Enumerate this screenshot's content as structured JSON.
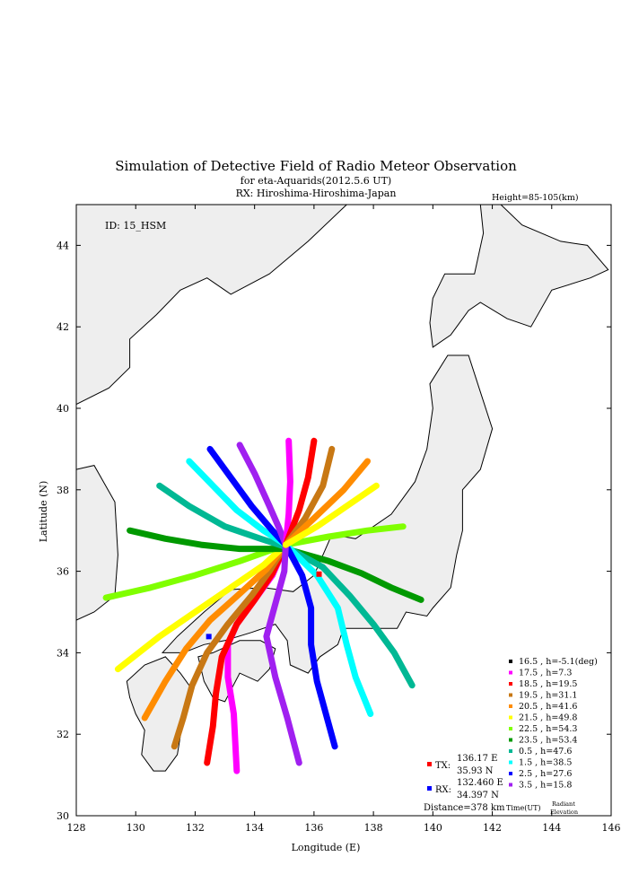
{
  "chart_data": {
    "type": "scatter",
    "title": "Simulation of Detective Field of Radio Meteor Observation",
    "subtitle_1": "for eta-Aquarids(2012.5.6 UT)",
    "subtitle_2": "RX: Hiroshima-Hiroshima-Japan",
    "height_note": "Height=85-105(km)",
    "id_label": "ID: 15_HSM",
    "xlabel": "Longitude (E)",
    "ylabel": "Latitude (N)",
    "xlim": [
      128,
      146
    ],
    "ylim": [
      30,
      45
    ],
    "xticks": [
      "128",
      "130",
      "132",
      "134",
      "136",
      "138",
      "140",
      "142",
      "144",
      "146"
    ],
    "yticks": [
      "30",
      "32",
      "34",
      "36",
      "38",
      "40",
      "42",
      "44"
    ],
    "tx": {
      "label": "TX:",
      "lon_text": "136.17 E",
      "lat_text": "35.93 N",
      "lon": 136.17,
      "lat": 35.93,
      "color": "#ff0000"
    },
    "rx": {
      "label": "RX:",
      "lon_text": "132.460 E",
      "lat_text": "34.397 N",
      "lon": 132.46,
      "lat": 34.397,
      "color": "#0000ff"
    },
    "distance": "Distance=378 km",
    "legend_footer": {
      "time": "Time(UT)",
      "radiant": "Radiant",
      "elevation": "Elevation"
    },
    "series": [
      {
        "name": "16.5 ,  h=-5.1(deg)",
        "color": "#000000",
        "points": []
      },
      {
        "name": "17.5 ,  h=7.3",
        "color": "#ff00ff",
        "points": [
          [
            135.05,
            36.65
          ],
          [
            134.6,
            35.9
          ],
          [
            134.0,
            35.3
          ],
          [
            133.4,
            34.7
          ],
          [
            133.1,
            34.2
          ],
          [
            133.1,
            33.4
          ],
          [
            133.3,
            32.5
          ],
          [
            133.4,
            31.1
          ]
        ]
      },
      {
        "name": "18.5 ,  h=19.5",
        "color": "#ff0000",
        "points": [
          [
            135.05,
            36.65
          ],
          [
            134.6,
            35.95
          ],
          [
            134.0,
            35.3
          ],
          [
            133.4,
            34.7
          ],
          [
            132.9,
            33.9
          ],
          [
            132.7,
            33.0
          ],
          [
            132.6,
            32.2
          ],
          [
            132.4,
            31.3
          ]
        ]
      },
      {
        "name": "19.5 ,  h=31.1",
        "color": "#c87814",
        "points": [
          [
            135.05,
            36.65
          ],
          [
            134.5,
            36.0
          ],
          [
            133.9,
            35.4
          ],
          [
            133.1,
            34.7
          ],
          [
            132.4,
            34.0
          ],
          [
            131.9,
            33.2
          ],
          [
            131.6,
            32.4
          ],
          [
            131.3,
            31.7
          ]
        ]
      },
      {
        "name": "20.5 ,  h=41.6",
        "color": "#ff8c00",
        "points": [
          [
            135.05,
            36.65
          ],
          [
            134.4,
            36.05
          ],
          [
            133.5,
            35.45
          ],
          [
            132.5,
            34.8
          ],
          [
            131.7,
            34.1
          ],
          [
            131.0,
            33.3
          ],
          [
            130.3,
            32.4
          ]
        ]
      },
      {
        "name": "21.5 ,  h=49.8",
        "color": "#ffff00",
        "points": [
          [
            135.05,
            36.65
          ],
          [
            134.3,
            36.15
          ],
          [
            133.2,
            35.6
          ],
          [
            132.0,
            35.0
          ],
          [
            130.8,
            34.4
          ],
          [
            129.4,
            33.6
          ]
        ]
      },
      {
        "name": "22.5 ,  h=54.3",
        "color": "#80ff00",
        "points": [
          [
            129.0,
            35.35
          ],
          [
            130.5,
            35.6
          ],
          [
            132.0,
            35.9
          ],
          [
            133.5,
            36.25
          ],
          [
            135.05,
            36.65
          ],
          [
            136.5,
            36.85
          ],
          [
            137.8,
            37.0
          ],
          [
            139.0,
            37.1
          ]
        ]
      },
      {
        "name": "23.5 ,  h=53.4",
        "color": "#009900",
        "points": [
          [
            129.8,
            37.0
          ],
          [
            131.0,
            36.8
          ],
          [
            132.2,
            36.65
          ],
          [
            133.5,
            36.55
          ],
          [
            135.05,
            36.55
          ],
          [
            136.5,
            36.25
          ],
          [
            137.6,
            35.95
          ],
          [
            138.6,
            35.6
          ],
          [
            139.6,
            35.3
          ]
        ]
      },
      {
        "name": "0.5   ,  h=47.6",
        "color": "#00b894",
        "points": [
          [
            130.8,
            38.1
          ],
          [
            131.8,
            37.6
          ],
          [
            133.0,
            37.1
          ],
          [
            134.2,
            36.8
          ],
          [
            135.05,
            36.6
          ],
          [
            136.3,
            36.1
          ],
          [
            137.2,
            35.4
          ],
          [
            138.0,
            34.7
          ],
          [
            138.7,
            34.0
          ],
          [
            139.3,
            33.2
          ]
        ]
      },
      {
        "name": "1.5   ,  h=38.5",
        "color": "#00ffff",
        "points": [
          [
            131.8,
            38.7
          ],
          [
            132.6,
            38.1
          ],
          [
            133.4,
            37.5
          ],
          [
            134.3,
            37.0
          ],
          [
            135.05,
            36.65
          ],
          [
            136.1,
            35.9
          ],
          [
            136.8,
            35.1
          ],
          [
            137.1,
            34.2
          ],
          [
            137.4,
            33.4
          ],
          [
            137.9,
            32.5
          ]
        ]
      },
      {
        "name": "2.5   ,  h=27.6",
        "color": "#0000ff",
        "points": [
          [
            132.5,
            39.0
          ],
          [
            133.2,
            38.3
          ],
          [
            133.9,
            37.6
          ],
          [
            134.6,
            37.0
          ],
          [
            135.05,
            36.65
          ],
          [
            135.6,
            35.9
          ],
          [
            135.9,
            35.1
          ],
          [
            135.9,
            34.2
          ],
          [
            136.1,
            33.3
          ],
          [
            136.7,
            31.7
          ]
        ]
      },
      {
        "name": "3.5   ,  h=15.8",
        "color": "#a020f0",
        "points": [
          [
            133.5,
            39.1
          ],
          [
            134.0,
            38.4
          ],
          [
            134.5,
            37.6
          ],
          [
            134.8,
            37.1
          ],
          [
            135.05,
            36.65
          ],
          [
            135.0,
            36.0
          ],
          [
            134.7,
            35.2
          ],
          [
            134.4,
            34.4
          ],
          [
            134.7,
            33.4
          ],
          [
            135.1,
            32.4
          ],
          [
            135.5,
            31.3
          ]
        ]
      },
      {
        "name": "",
        "color": "#ff00ff",
        "points": [
          [
            135.05,
            36.65
          ],
          [
            135.15,
            37.4
          ],
          [
            135.2,
            38.2
          ],
          [
            135.15,
            39.2
          ]
        ]
      },
      {
        "name": "",
        "color": "#ff0000",
        "points": [
          [
            135.05,
            36.65
          ],
          [
            135.5,
            37.5
          ],
          [
            135.8,
            38.3
          ],
          [
            136.0,
            39.2
          ]
        ]
      },
      {
        "name": "",
        "color": "#c87814",
        "points": [
          [
            135.05,
            36.65
          ],
          [
            135.7,
            37.3
          ],
          [
            136.3,
            38.1
          ],
          [
            136.6,
            39.0
          ]
        ]
      },
      {
        "name": "",
        "color": "#ff8c00",
        "points": [
          [
            135.05,
            36.65
          ],
          [
            136.0,
            37.3
          ],
          [
            137.0,
            38.0
          ],
          [
            137.8,
            38.7
          ]
        ]
      },
      {
        "name": "",
        "color": "#ffff00",
        "points": [
          [
            135.05,
            36.65
          ],
          [
            136.1,
            37.1
          ],
          [
            137.1,
            37.6
          ],
          [
            138.1,
            38.1
          ]
        ]
      }
    ]
  }
}
